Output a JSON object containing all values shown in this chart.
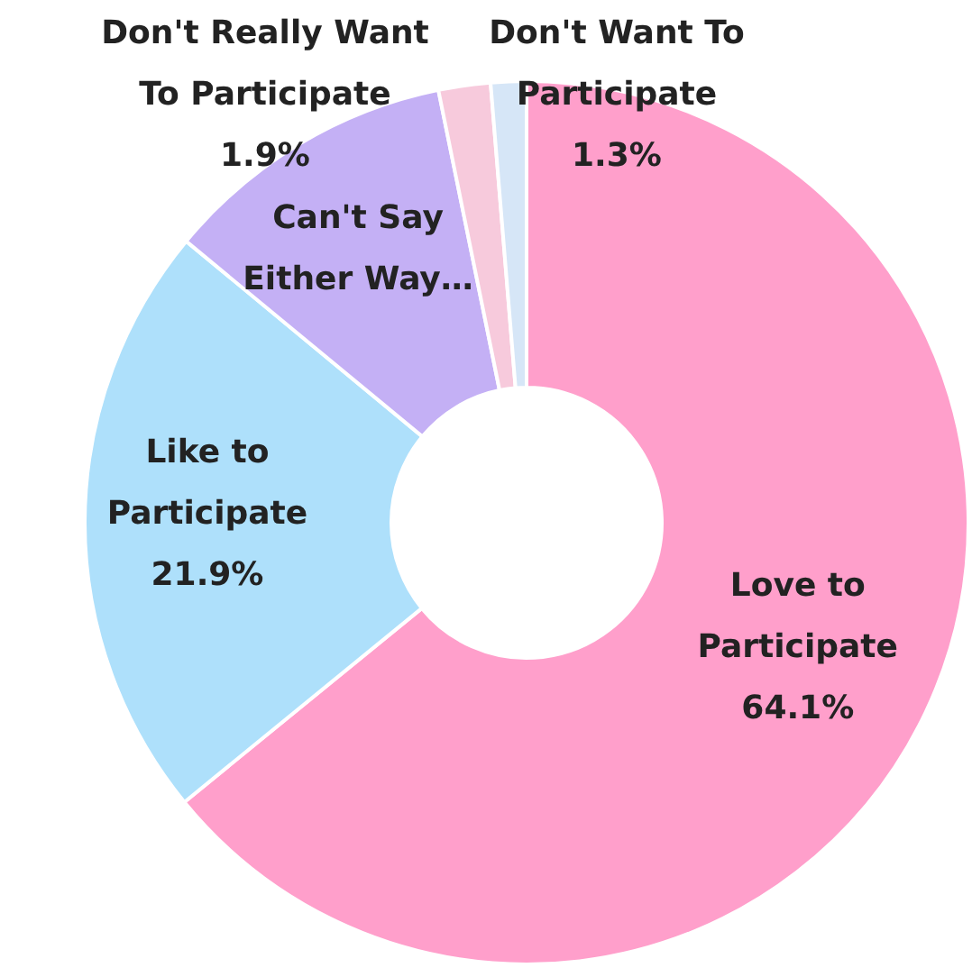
{
  "chart_data": {
    "type": "donut",
    "categories": [
      "Love to Participate",
      "Like to Participate",
      "Can't Say Either Way…",
      "Don't Really Want To Participate",
      "Don't Want To Participate"
    ],
    "values": [
      64.1,
      21.9,
      10.8,
      1.9,
      1.3
    ],
    "value_labels": [
      "64.1%",
      "21.9%",
      null,
      "1.9%",
      "1.3%"
    ],
    "colors": [
      "#ff9fcb",
      "#aee0fb",
      "#c4b0f5",
      "#f7cadc",
      "#d6e6f7"
    ]
  }
}
